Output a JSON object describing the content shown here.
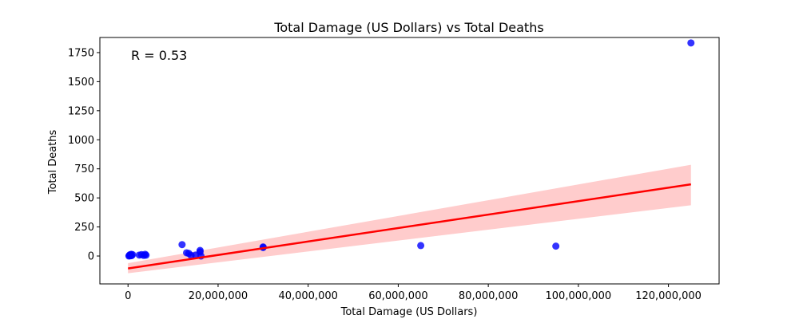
{
  "chart_data": {
    "type": "scatter",
    "title": "Total Damage (US Dollars) vs Total Deaths",
    "xlabel": "Total Damage (US Dollars)",
    "ylabel": "Total Deaths",
    "annotation": "R = 0.53",
    "xlim": [
      -6250000,
      131250000
    ],
    "ylim": [
      -240,
      1880
    ],
    "x_ticks": [
      0,
      20000000,
      40000000,
      60000000,
      80000000,
      100000000,
      120000000
    ],
    "x_tick_labels": [
      "0",
      "20,000,000",
      "40,000,000",
      "60,000,000",
      "80,000,000",
      "100,000,000",
      "120,000,000"
    ],
    "y_ticks": [
      0,
      250,
      500,
      750,
      1000,
      1250,
      1500,
      1750
    ],
    "y_tick_labels": [
      "0",
      "250",
      "500",
      "750",
      "1000",
      "1250",
      "1500",
      "1750"
    ],
    "grid": false,
    "series": [
      {
        "points": [
          [
            200000,
            0
          ],
          [
            300000,
            5
          ],
          [
            400000,
            10
          ],
          [
            500000,
            2
          ],
          [
            600000,
            8
          ],
          [
            700000,
            15
          ],
          [
            800000,
            3
          ],
          [
            1000000,
            12
          ],
          [
            2500000,
            8
          ],
          [
            3000000,
            12
          ],
          [
            3500000,
            5
          ],
          [
            3800000,
            15
          ],
          [
            4000000,
            7
          ],
          [
            12000000,
            98
          ],
          [
            13000000,
            28
          ],
          [
            13500000,
            22
          ],
          [
            14000000,
            5
          ],
          [
            15000000,
            8
          ],
          [
            16000000,
            48
          ],
          [
            16000000,
            35
          ],
          [
            16200000,
            0
          ],
          [
            30000000,
            78
          ],
          [
            30000000,
            73
          ],
          [
            65000000,
            90
          ],
          [
            95000000,
            85
          ],
          [
            125000000,
            1833
          ]
        ],
        "color": "#0000ff"
      }
    ],
    "regression": {
      "x": [
        0,
        125000000
      ],
      "y": [
        -107,
        617
      ],
      "ci_lower": [
        -148,
        437
      ],
      "ci_upper": [
        -62,
        785
      ],
      "color": "#ff0000",
      "band_color": "#ffcccc"
    }
  }
}
